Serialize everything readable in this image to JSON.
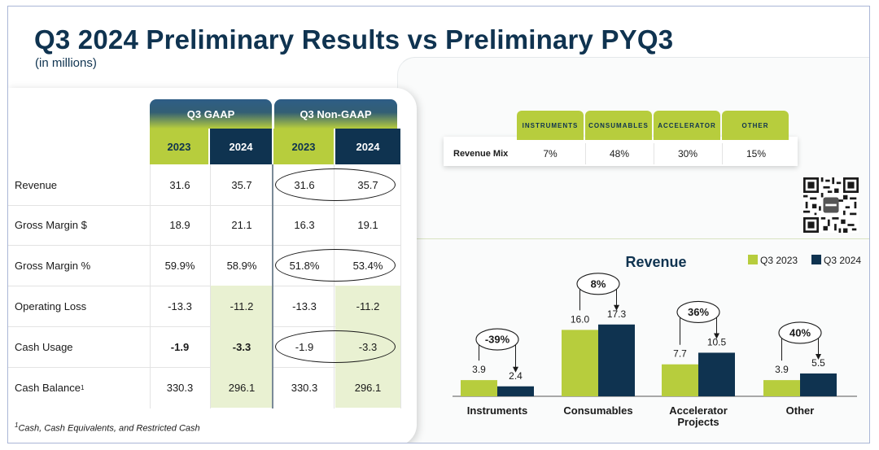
{
  "header": {
    "title": "Q3 2024 Preliminary Results vs Preliminary PYQ3",
    "subtitle": "(in millions)"
  },
  "table": {
    "groups": [
      "Q3 GAAP",
      "Q3 Non-GAAP"
    ],
    "years": [
      "2023",
      "2024",
      "2023",
      "2024"
    ],
    "rows": [
      {
        "label": "Revenue",
        "sup": "",
        "values": [
          "31.6",
          "35.7",
          "31.6",
          "35.7"
        ],
        "highlight": [
          false,
          false,
          false,
          false
        ],
        "bold": [
          false,
          false,
          false,
          false
        ]
      },
      {
        "label": "Gross Margin $",
        "sup": "",
        "values": [
          "18.9",
          "21.1",
          "16.3",
          "19.1"
        ],
        "highlight": [
          false,
          false,
          false,
          false
        ],
        "bold": [
          false,
          false,
          false,
          false
        ]
      },
      {
        "label": "Gross Margin %",
        "sup": "",
        "values": [
          "59.9%",
          "58.9%",
          "51.8%",
          "53.4%"
        ],
        "highlight": [
          false,
          false,
          false,
          false
        ],
        "bold": [
          false,
          false,
          false,
          false
        ]
      },
      {
        "label": "Operating Loss",
        "sup": "",
        "values": [
          "-13.3",
          "-11.2",
          "-13.3",
          "-11.2"
        ],
        "highlight": [
          false,
          true,
          false,
          true
        ],
        "bold": [
          false,
          false,
          false,
          false
        ]
      },
      {
        "label": "Cash Usage",
        "sup": "",
        "values": [
          "-1.9",
          "-3.3",
          "-1.9",
          "-3.3"
        ],
        "highlight": [
          false,
          true,
          false,
          true
        ],
        "bold": [
          true,
          true,
          false,
          false
        ]
      },
      {
        "label": "Cash Balance",
        "sup": "1",
        "values": [
          "330.3",
          "296.1",
          "330.3",
          "296.1"
        ],
        "highlight": [
          false,
          true,
          false,
          true
        ],
        "bold": [
          false,
          false,
          false,
          false
        ]
      }
    ],
    "footnote_sup": "1",
    "footnote": "Cash, Cash Equivalents, and Restricted Cash"
  },
  "revenue_mix": {
    "row_label": "Revenue Mix",
    "columns": [
      "INSTRUMENTS",
      "CONSUMABLES",
      "ACCELERATOR",
      "OTHER"
    ],
    "values": [
      "7%",
      "48%",
      "30%",
      "15%"
    ]
  },
  "colors": {
    "navy": "#0f3350",
    "lime": "#b7cd3d",
    "highlight": "#e9f1d2"
  },
  "chart_data": {
    "type": "bar",
    "title": "Revenue",
    "legend_position": "top-right",
    "categories": [
      "Instruments",
      "Consumables",
      "Accelerator Projects",
      "Other"
    ],
    "series": [
      {
        "name": "Q3 2023",
        "values": [
          3.9,
          16.0,
          7.7,
          3.9
        ],
        "color": "#b7cd3d"
      },
      {
        "name": "Q3 2024",
        "values": [
          2.4,
          17.3,
          10.5,
          5.5
        ],
        "color": "#0f3350"
      }
    ],
    "value_labels": [
      [
        "3.9",
        "16.0",
        "7.7",
        "3.9"
      ],
      [
        "2.4",
        "17.3",
        "10.5",
        "5.5"
      ]
    ],
    "change_labels": [
      "-39%",
      "8%",
      "36%",
      "40%"
    ],
    "ylim": [
      0,
      20
    ],
    "grid": false
  }
}
